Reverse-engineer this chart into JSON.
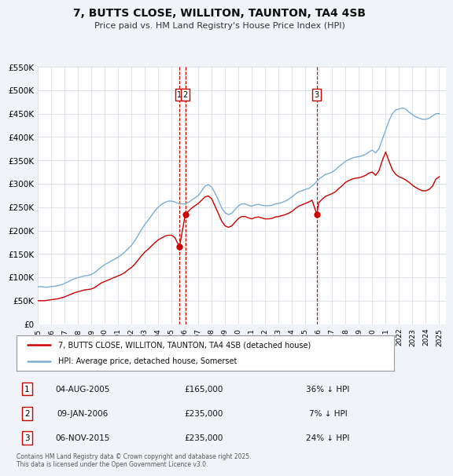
{
  "title": "7, BUTTS CLOSE, WILLITON, TAUNTON, TA4 4SB",
  "subtitle": "Price paid vs. HM Land Registry's House Price Index (HPI)",
  "legend_line1": "7, BUTTS CLOSE, WILLITON, TAUNTON, TA4 4SB (detached house)",
  "legend_line2": "HPI: Average price, detached house, Somerset",
  "red_color": "#cc0000",
  "blue_color": "#7aafd4",
  "background_color": "#f0f4f8",
  "plot_bg_color": "#ffffff",
  "ylim": [
    0,
    550000
  ],
  "yticks": [
    0,
    50000,
    100000,
    150000,
    200000,
    250000,
    300000,
    350000,
    400000,
    450000,
    500000,
    550000
  ],
  "ytick_labels": [
    "£0",
    "£50K",
    "£100K",
    "£150K",
    "£200K",
    "£250K",
    "£300K",
    "£350K",
    "£400K",
    "£450K",
    "£500K",
    "£550K"
  ],
  "transactions": [
    {
      "label": "1",
      "date": "04-AUG-2005",
      "date_num": 2005.59,
      "price": 165000,
      "pct": "36%",
      "dir": "↓"
    },
    {
      "label": "2",
      "date": "09-JAN-2006",
      "date_num": 2006.03,
      "price": 235000,
      "pct": "7%",
      "dir": "↓"
    },
    {
      "label": "3",
      "date": "06-NOV-2015",
      "date_num": 2015.85,
      "price": 235000,
      "pct": "24%",
      "dir": "↓"
    }
  ],
  "footer": "Contains HM Land Registry data © Crown copyright and database right 2025.\nThis data is licensed under the Open Government Licence v3.0.",
  "hpi_data": {
    "years": [
      1995.0,
      1995.25,
      1995.5,
      1995.75,
      1996.0,
      1996.25,
      1996.5,
      1996.75,
      1997.0,
      1997.25,
      1997.5,
      1997.75,
      1998.0,
      1998.25,
      1998.5,
      1998.75,
      1999.0,
      1999.25,
      1999.5,
      1999.75,
      2000.0,
      2000.25,
      2000.5,
      2000.75,
      2001.0,
      2001.25,
      2001.5,
      2001.75,
      2002.0,
      2002.25,
      2002.5,
      2002.75,
      2003.0,
      2003.25,
      2003.5,
      2003.75,
      2004.0,
      2004.25,
      2004.5,
      2004.75,
      2005.0,
      2005.25,
      2005.5,
      2005.75,
      2006.0,
      2006.25,
      2006.5,
      2006.75,
      2007.0,
      2007.25,
      2007.5,
      2007.75,
      2008.0,
      2008.25,
      2008.5,
      2008.75,
      2009.0,
      2009.25,
      2009.5,
      2009.75,
      2010.0,
      2010.25,
      2010.5,
      2010.75,
      2011.0,
      2011.25,
      2011.5,
      2011.75,
      2012.0,
      2012.25,
      2012.5,
      2012.75,
      2013.0,
      2013.25,
      2013.5,
      2013.75,
      2014.0,
      2014.25,
      2014.5,
      2014.75,
      2015.0,
      2015.25,
      2015.5,
      2015.75,
      2016.0,
      2016.25,
      2016.5,
      2016.75,
      2017.0,
      2017.25,
      2017.5,
      2017.75,
      2018.0,
      2018.25,
      2018.5,
      2018.75,
      2019.0,
      2019.25,
      2019.5,
      2019.75,
      2020.0,
      2020.25,
      2020.5,
      2020.75,
      2021.0,
      2021.25,
      2021.5,
      2021.75,
      2022.0,
      2022.25,
      2022.5,
      2022.75,
      2023.0,
      2023.25,
      2023.5,
      2023.75,
      2024.0,
      2024.25,
      2024.5,
      2024.75,
      2025.0
    ],
    "values": [
      80000,
      80000,
      79000,
      79000,
      80000,
      81000,
      82000,
      84000,
      87000,
      90000,
      94000,
      97000,
      99000,
      101000,
      103000,
      104000,
      106000,
      110000,
      116000,
      122000,
      127000,
      131000,
      135000,
      139000,
      143000,
      148000,
      154000,
      161000,
      168000,
      178000,
      190000,
      202000,
      213000,
      222000,
      232000,
      242000,
      250000,
      256000,
      260000,
      263000,
      263000,
      261000,
      258000,
      257000,
      257000,
      260000,
      265000,
      270000,
      275000,
      285000,
      295000,
      298000,
      293000,
      280000,
      265000,
      248000,
      238000,
      234000,
      237000,
      245000,
      253000,
      257000,
      257000,
      254000,
      252000,
      255000,
      256000,
      254000,
      253000,
      253000,
      254000,
      257000,
      258000,
      260000,
      263000,
      267000,
      272000,
      278000,
      283000,
      285000,
      288000,
      290000,
      295000,
      302000,
      310000,
      315000,
      320000,
      322000,
      325000,
      330000,
      337000,
      342000,
      348000,
      352000,
      355000,
      357000,
      358000,
      360000,
      363000,
      368000,
      372000,
      366000,
      375000,
      395000,
      415000,
      435000,
      450000,
      458000,
      460000,
      462000,
      460000,
      453000,
      448000,
      443000,
      440000,
      438000,
      438000,
      440000,
      445000,
      450000,
      450000
    ]
  },
  "red_data": {
    "years": [
      1995.0,
      1995.25,
      1995.5,
      1995.75,
      1996.0,
      1996.25,
      1996.5,
      1996.75,
      1997.0,
      1997.25,
      1997.5,
      1997.75,
      1998.0,
      1998.25,
      1998.5,
      1998.75,
      1999.0,
      1999.25,
      1999.5,
      1999.75,
      2000.0,
      2000.25,
      2000.5,
      2000.75,
      2001.0,
      2001.25,
      2001.5,
      2001.75,
      2002.0,
      2002.25,
      2002.5,
      2002.75,
      2003.0,
      2003.25,
      2003.5,
      2003.75,
      2004.0,
      2004.25,
      2004.5,
      2004.75,
      2005.0,
      2005.25,
      2005.59,
      2006.03,
      2006.5,
      2006.75,
      2007.0,
      2007.25,
      2007.5,
      2007.75,
      2008.0,
      2008.25,
      2008.5,
      2008.75,
      2009.0,
      2009.25,
      2009.5,
      2009.75,
      2010.0,
      2010.25,
      2010.5,
      2010.75,
      2011.0,
      2011.25,
      2011.5,
      2011.75,
      2012.0,
      2012.25,
      2012.5,
      2012.75,
      2013.0,
      2013.25,
      2013.5,
      2013.75,
      2014.0,
      2014.25,
      2014.5,
      2014.75,
      2015.0,
      2015.25,
      2015.5,
      2015.85,
      2016.0,
      2016.25,
      2016.5,
      2016.75,
      2017.0,
      2017.25,
      2017.5,
      2017.75,
      2018.0,
      2018.25,
      2018.5,
      2018.75,
      2019.0,
      2019.25,
      2019.5,
      2019.75,
      2020.0,
      2020.25,
      2020.5,
      2020.75,
      2021.0,
      2021.25,
      2021.5,
      2021.75,
      2022.0,
      2022.25,
      2022.5,
      2022.75,
      2023.0,
      2023.25,
      2023.5,
      2023.75,
      2024.0,
      2024.25,
      2024.5,
      2024.75,
      2025.0
    ],
    "values": [
      50000,
      50000,
      50000,
      51000,
      52000,
      53000,
      54000,
      56000,
      58000,
      61000,
      64000,
      67000,
      69000,
      71000,
      73000,
      74000,
      75000,
      78000,
      83000,
      88000,
      91000,
      94000,
      97000,
      100000,
      103000,
      106000,
      110000,
      116000,
      121000,
      128000,
      137000,
      146000,
      154000,
      160000,
      167000,
      174000,
      180000,
      184000,
      188000,
      190000,
      190000,
      185000,
      165000,
      235000,
      248000,
      253000,
      258000,
      265000,
      272000,
      274000,
      268000,
      252000,
      236000,
      220000,
      210000,
      207000,
      210000,
      218000,
      226000,
      230000,
      230000,
      227000,
      225000,
      228000,
      229000,
      227000,
      225000,
      225000,
      226000,
      229000,
      230000,
      232000,
      234000,
      237000,
      241000,
      247000,
      252000,
      255000,
      258000,
      261000,
      265000,
      235000,
      260000,
      267000,
      273000,
      276000,
      279000,
      283000,
      290000,
      296000,
      303000,
      307000,
      310000,
      312000,
      313000,
      315000,
      318000,
      323000,
      325000,
      318000,
      328000,
      350000,
      368000,
      348000,
      330000,
      320000,
      315000,
      312000,
      308000,
      303000,
      297000,
      292000,
      288000,
      285000,
      285000,
      288000,
      295000,
      310000,
      315000
    ]
  }
}
